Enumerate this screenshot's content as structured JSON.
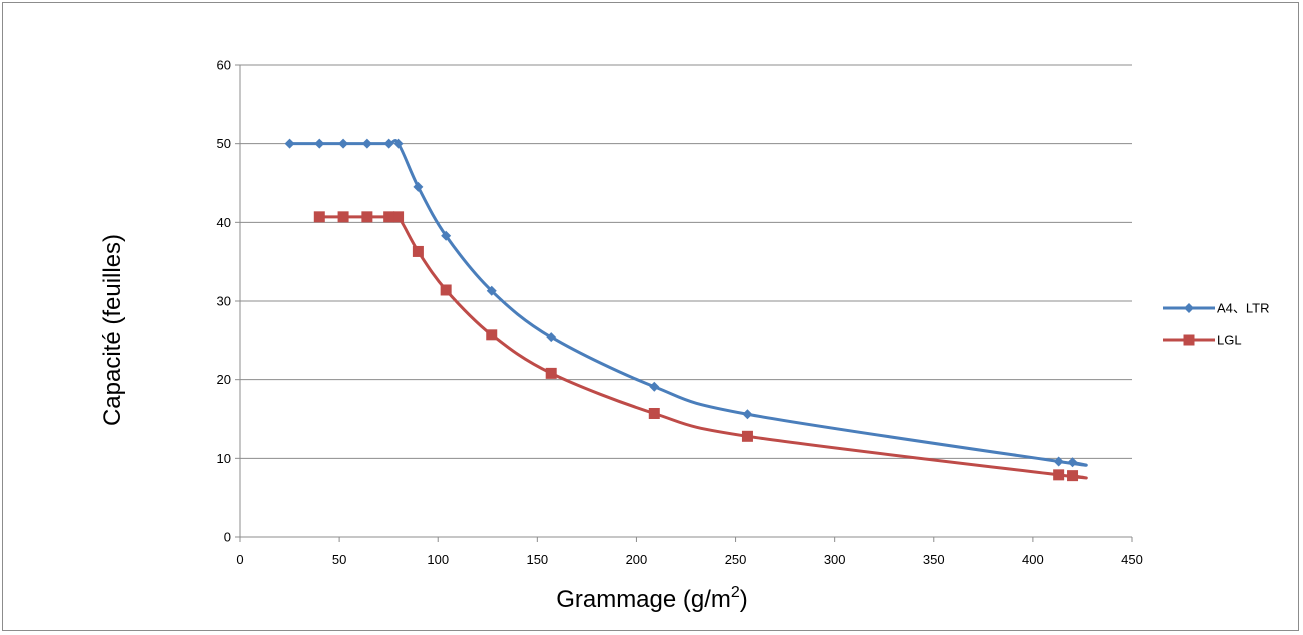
{
  "chart_data": {
    "type": "line",
    "title": "",
    "xlabel": "Grammage (g/m",
    "xlabel_sup": "2",
    "xlabel_suffix": ")",
    "ylabel": "Capacité (feuilles)",
    "xlim": [
      0,
      450
    ],
    "ylim": [
      0,
      60
    ],
    "x_ticks": [
      0,
      50,
      100,
      150,
      200,
      250,
      300,
      350,
      400,
      450
    ],
    "y_ticks": [
      0,
      10,
      20,
      30,
      40,
      50,
      60
    ],
    "grid": "horizontal",
    "legend_position": "right",
    "series": [
      {
        "name": "A4、LTR",
        "color": "#4a7ebb",
        "marker": "diamond",
        "x": [
          25,
          40,
          52,
          64,
          75,
          80,
          90,
          104,
          127,
          157,
          209,
          256,
          413,
          420
        ],
        "y": [
          50,
          50,
          50,
          50,
          50,
          50,
          44.5,
          38.3,
          31.3,
          25.4,
          19.1,
          15.6,
          9.6,
          9.5
        ]
      },
      {
        "name": "LGL",
        "color": "#be4b48",
        "marker": "square",
        "x": [
          40,
          52,
          64,
          75,
          80,
          90,
          104,
          127,
          157,
          209,
          256,
          413,
          420
        ],
        "y": [
          40.7,
          40.7,
          40.7,
          40.7,
          40.7,
          36.3,
          31.4,
          25.7,
          20.8,
          15.7,
          12.8,
          7.9,
          7.8
        ]
      }
    ]
  }
}
